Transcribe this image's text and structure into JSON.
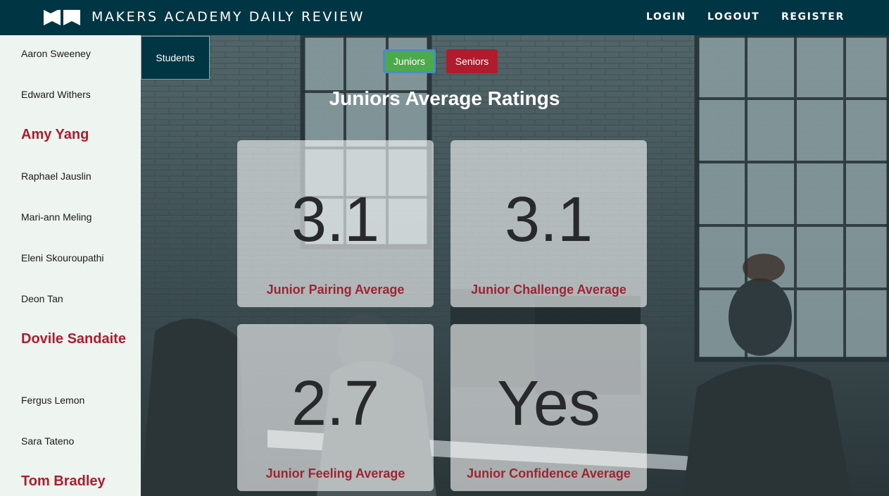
{
  "app": {
    "title": "MAKERS ACADEMY DAILY REVIEW"
  },
  "nav": {
    "login": "LOGIN",
    "logout": "LOGOUT",
    "register": "REGISTER"
  },
  "sidebar": {
    "students": [
      {
        "name": "Aaron Sweeney",
        "featured": false
      },
      {
        "name": "Edward Withers",
        "featured": false
      },
      {
        "name": "Amy Yang",
        "featured": true
      },
      {
        "name": "Raphael Jauslin",
        "featured": false
      },
      {
        "name": "Mari-ann Meling",
        "featured": false
      },
      {
        "name": "Eleni Skouroupathi",
        "featured": false
      },
      {
        "name": "Deon Tan",
        "featured": false
      },
      {
        "name": "Dovile Sandaite",
        "featured": true
      },
      {
        "name": "Fergus Lemon",
        "featured": false
      },
      {
        "name": "Sara Tateno",
        "featured": false
      },
      {
        "name": "Tom Bradley",
        "featured": true
      }
    ]
  },
  "main": {
    "students_tab": "Students",
    "toggles": {
      "juniors": "Juniors",
      "seniors": "Seniors",
      "active": "juniors"
    },
    "heading": "Juniors Average Ratings",
    "cards": [
      {
        "value": "3.1",
        "label": "Junior Pairing Average"
      },
      {
        "value": "3.1",
        "label": "Junior Challenge Average"
      },
      {
        "value": "2.7",
        "label": "Junior Feeling Average"
      },
      {
        "value": "Yes",
        "label": "Junior Confidence Average"
      }
    ]
  },
  "colors": {
    "navbar": "#003543",
    "sidebar_bg": "#eef4f0",
    "accent_red": "#b01b2d",
    "juniors_green": "#4caa4a",
    "card_label": "#9c2533"
  }
}
